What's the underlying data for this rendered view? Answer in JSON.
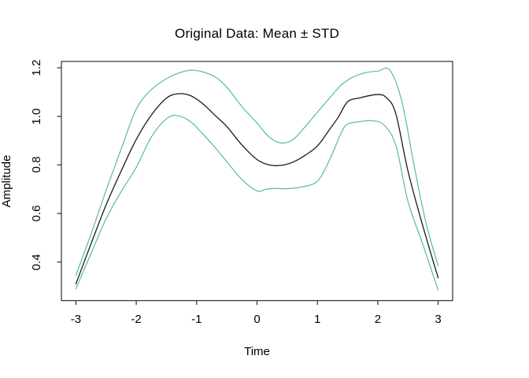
{
  "figure": {
    "background": "#ffffff"
  },
  "chart_data": {
    "type": "line",
    "title": "Original Data: Mean ± STD",
    "xlabel": "Time",
    "ylabel": "Amplitude",
    "grid": false,
    "legend": "none",
    "frame_color": "#2e2e2e",
    "xlim": [
      -3.24,
      3.24
    ],
    "ylim": [
      0.2415,
      1.226
    ],
    "x_ticks": [
      {
        "v": -3,
        "label": "-3"
      },
      {
        "v": -2,
        "label": "-2"
      },
      {
        "v": -1,
        "label": "-1"
      },
      {
        "v": 0,
        "label": "0"
      },
      {
        "v": 1,
        "label": "1"
      },
      {
        "v": 2,
        "label": "2"
      },
      {
        "v": 3,
        "label": "3"
      }
    ],
    "y_ticks": [
      {
        "v": 0.4,
        "label": "0.4"
      },
      {
        "v": 0.6,
        "label": "0.6"
      },
      {
        "v": 0.8,
        "label": "0.8"
      },
      {
        "v": 1.0,
        "label": "1.0"
      },
      {
        "v": 1.2,
        "label": "1.2"
      }
    ],
    "series": [
      {
        "name": "mean",
        "color": "#1a1a1a",
        "width": 1.3,
        "points": [
          [
            -3.0,
            0.31
          ],
          [
            -2.75,
            0.475
          ],
          [
            -2.5,
            0.635
          ],
          [
            -2.25,
            0.775
          ],
          [
            -2.0,
            0.905
          ],
          [
            -1.75,
            1.005
          ],
          [
            -1.5,
            1.075
          ],
          [
            -1.3,
            1.093
          ],
          [
            -1.1,
            1.085
          ],
          [
            -0.9,
            1.052
          ],
          [
            -0.7,
            1.005
          ],
          [
            -0.5,
            0.958
          ],
          [
            -0.25,
            0.882
          ],
          [
            0.0,
            0.822
          ],
          [
            0.2,
            0.8
          ],
          [
            0.4,
            0.798
          ],
          [
            0.6,
            0.812
          ],
          [
            0.8,
            0.84
          ],
          [
            1.0,
            0.878
          ],
          [
            1.2,
            0.945
          ],
          [
            1.35,
            0.998
          ],
          [
            1.5,
            1.06
          ],
          [
            1.7,
            1.076
          ],
          [
            2.0,
            1.09
          ],
          [
            2.15,
            1.075
          ],
          [
            2.3,
            1.01
          ],
          [
            2.5,
            0.775
          ],
          [
            2.75,
            0.545
          ],
          [
            3.0,
            0.335
          ]
        ]
      },
      {
        "name": "mean_plus_std",
        "color": "#55be91",
        "width": 1.2,
        "points": [
          [
            -3.0,
            0.345
          ],
          [
            -2.75,
            0.515
          ],
          [
            -2.5,
            0.695
          ],
          [
            -2.25,
            0.865
          ],
          [
            -2.0,
            1.03
          ],
          [
            -1.75,
            1.11
          ],
          [
            -1.5,
            1.155
          ],
          [
            -1.3,
            1.178
          ],
          [
            -1.1,
            1.19
          ],
          [
            -0.9,
            1.183
          ],
          [
            -0.7,
            1.163
          ],
          [
            -0.5,
            1.12
          ],
          [
            -0.25,
            1.04
          ],
          [
            0.0,
            0.972
          ],
          [
            0.2,
            0.915
          ],
          [
            0.4,
            0.89
          ],
          [
            0.6,
            0.905
          ],
          [
            0.8,
            0.958
          ],
          [
            1.0,
            1.017
          ],
          [
            1.2,
            1.075
          ],
          [
            1.4,
            1.13
          ],
          [
            1.6,
            1.163
          ],
          [
            1.8,
            1.18
          ],
          [
            2.0,
            1.186
          ],
          [
            2.2,
            1.19
          ],
          [
            2.4,
            1.06
          ],
          [
            2.6,
            0.8
          ],
          [
            2.8,
            0.56
          ],
          [
            3.0,
            0.385
          ]
        ]
      },
      {
        "name": "mean_minus_std",
        "color": "#55be91",
        "width": 1.2,
        "points": [
          [
            -3.0,
            0.29
          ],
          [
            -2.75,
            0.435
          ],
          [
            -2.5,
            0.578
          ],
          [
            -2.25,
            0.69
          ],
          [
            -2.0,
            0.79
          ],
          [
            -1.75,
            0.915
          ],
          [
            -1.5,
            0.99
          ],
          [
            -1.32,
            1.003
          ],
          [
            -1.1,
            0.978
          ],
          [
            -0.9,
            0.928
          ],
          [
            -0.7,
            0.873
          ],
          [
            -0.5,
            0.813
          ],
          [
            -0.25,
            0.74
          ],
          [
            0.0,
            0.693
          ],
          [
            0.15,
            0.7
          ],
          [
            0.3,
            0.703
          ],
          [
            0.5,
            0.702
          ],
          [
            0.75,
            0.71
          ],
          [
            1.0,
            0.733
          ],
          [
            1.2,
            0.82
          ],
          [
            1.4,
            0.935
          ],
          [
            1.5,
            0.968
          ],
          [
            1.7,
            0.978
          ],
          [
            1.9,
            0.982
          ],
          [
            2.1,
            0.965
          ],
          [
            2.3,
            0.88
          ],
          [
            2.5,
            0.65
          ],
          [
            2.75,
            0.47
          ],
          [
            3.0,
            0.285
          ]
        ]
      }
    ]
  }
}
